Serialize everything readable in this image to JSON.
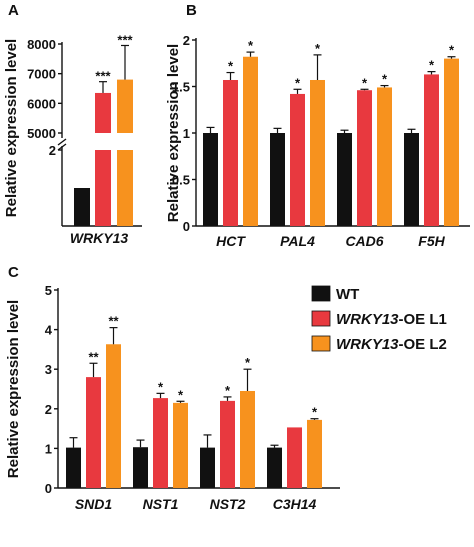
{
  "colors": {
    "WT": "#111111",
    "L1": "#e8393f",
    "L2": "#f7921e"
  },
  "legend": [
    {
      "key": "WT",
      "name_italic": "",
      "name_rest": "WT"
    },
    {
      "key": "L1",
      "name_italic": "WRKY13",
      "name_rest": "-OE L1"
    },
    {
      "key": "L2",
      "name_italic": "WRKY13",
      "name_rest": "-OE L2"
    }
  ],
  "chart_data": [
    {
      "panel": "A",
      "type": "bar",
      "ylabel": "Relative expression level",
      "broken_axis": true,
      "lower_ylim": [
        0,
        2
      ],
      "lower_ticks": [
        "2"
      ],
      "upper_ylim": [
        5000,
        8000
      ],
      "upper_ticks": [
        "5000",
        "6000",
        "7000",
        "8000"
      ],
      "categories": [
        "WRKY13"
      ],
      "series": [
        {
          "name": "WT",
          "values": [
            1
          ],
          "errors": [
            0
          ]
        },
        {
          "name": "WRKY13-OE L1",
          "values": [
            6350
          ],
          "errors": [
            380
          ]
        },
        {
          "name": "WRKY13-OE L2",
          "values": [
            6800
          ],
          "errors": [
            1150
          ]
        }
      ],
      "significance": [
        [
          "",
          "***",
          "***"
        ]
      ]
    },
    {
      "panel": "B",
      "type": "bar",
      "ylabel": "Relative expression level",
      "ylim": [
        0,
        2
      ],
      "ticks": [
        "0",
        "0.5",
        "1",
        "1.5",
        "2"
      ],
      "categories": [
        "HCT",
        "PAL4",
        "CAD6",
        "F5H"
      ],
      "series": [
        {
          "name": "WT",
          "values": [
            1.0,
            1.0,
            1.0,
            1.0
          ],
          "errors": [
            0.06,
            0.05,
            0.03,
            0.04
          ]
        },
        {
          "name": "WRKY13-OE L1",
          "values": [
            1.57,
            1.42,
            1.46,
            1.63
          ],
          "errors": [
            0.08,
            0.05,
            0.01,
            0.03
          ]
        },
        {
          "name": "WRKY13-OE L2",
          "values": [
            1.82,
            1.57,
            1.49,
            1.8
          ],
          "errors": [
            0.05,
            0.27,
            0.02,
            0.02
          ]
        }
      ],
      "significance": [
        [
          "",
          "*",
          "*"
        ],
        [
          "",
          "*",
          "*"
        ],
        [
          "",
          "*",
          "*"
        ],
        [
          "",
          "*",
          "*"
        ]
      ]
    },
    {
      "panel": "C",
      "type": "bar",
      "ylabel": "Relative expression level",
      "ylim": [
        0,
        5
      ],
      "ticks": [
        "0",
        "1",
        "2",
        "3",
        "4",
        "5"
      ],
      "categories": [
        "SND1",
        "NST1",
        "NST2",
        "C3H14"
      ],
      "series": [
        {
          "name": "WT",
          "values": [
            1.02,
            1.03,
            1.02,
            1.02
          ],
          "errors": [
            0.25,
            0.18,
            0.32,
            0.06
          ]
        },
        {
          "name": "WRKY13-OE L1",
          "values": [
            2.8,
            2.27,
            2.2,
            1.53
          ],
          "errors": [
            0.35,
            0.12,
            0.1,
            0.0
          ]
        },
        {
          "name": "WRKY13-OE L2",
          "values": [
            3.63,
            2.15,
            2.45,
            1.72
          ],
          "errors": [
            0.42,
            0.04,
            0.55,
            0.03
          ]
        }
      ],
      "significance": [
        [
          "",
          "**",
          "**"
        ],
        [
          "",
          "*",
          "*"
        ],
        [
          "",
          "*",
          "*"
        ],
        [
          "",
          "",
          "*"
        ]
      ]
    }
  ]
}
